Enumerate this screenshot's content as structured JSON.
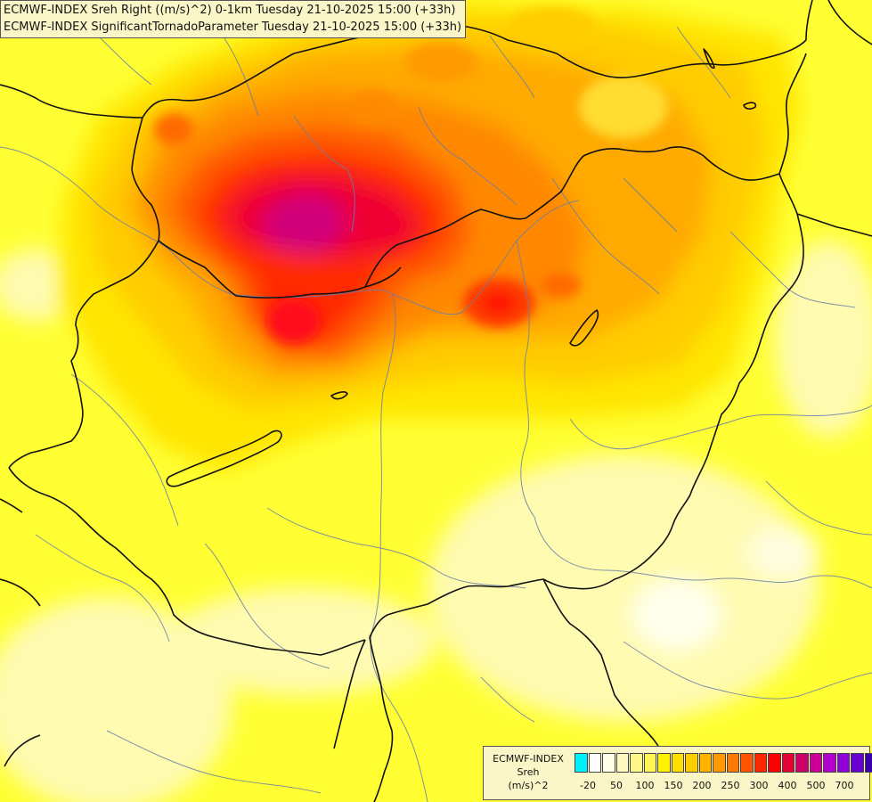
{
  "header": {
    "line1": "ECMWF-INDEX Sreh Right ((m/s)^2) 0-1km Tuesday 21-10-2025 15:00 (+33h)",
    "line2": "ECMWF-INDEX SignificantTornadoParameter Tuesday 21-10-2025 15:00 (+33h)"
  },
  "legend": {
    "line1": "ECMWF-INDEX",
    "line2": "Sreh",
    "line3": "(m/s)^2",
    "colors": [
      "#00f0ff",
      "#ffffff",
      "#fffde8",
      "#fffac0",
      "#fff888",
      "#fff555",
      "#fff200",
      "#ffe100",
      "#ffcc00",
      "#ffb300",
      "#ff9900",
      "#ff7a00",
      "#ff5500",
      "#ff2600",
      "#ff0000",
      "#e60033",
      "#cc0066",
      "#cc0099",
      "#b300cc",
      "#8f00dd",
      "#6600cc",
      "#3a00aa",
      "#1a0099",
      "#000080"
    ],
    "ticks": [
      "-20",
      "50",
      "100",
      "150",
      "200",
      "250",
      "300",
      "400",
      "500",
      "700"
    ]
  },
  "map": {
    "background_color": "#ffff33",
    "field_levels": [
      "#fffdd0",
      "#fffa99",
      "#ffee00",
      "#ffd400",
      "#ffb400",
      "#ff8f00",
      "#ff6600",
      "#ff3300",
      "#ff0000",
      "#e0005a",
      "#c8008c"
    ]
  }
}
